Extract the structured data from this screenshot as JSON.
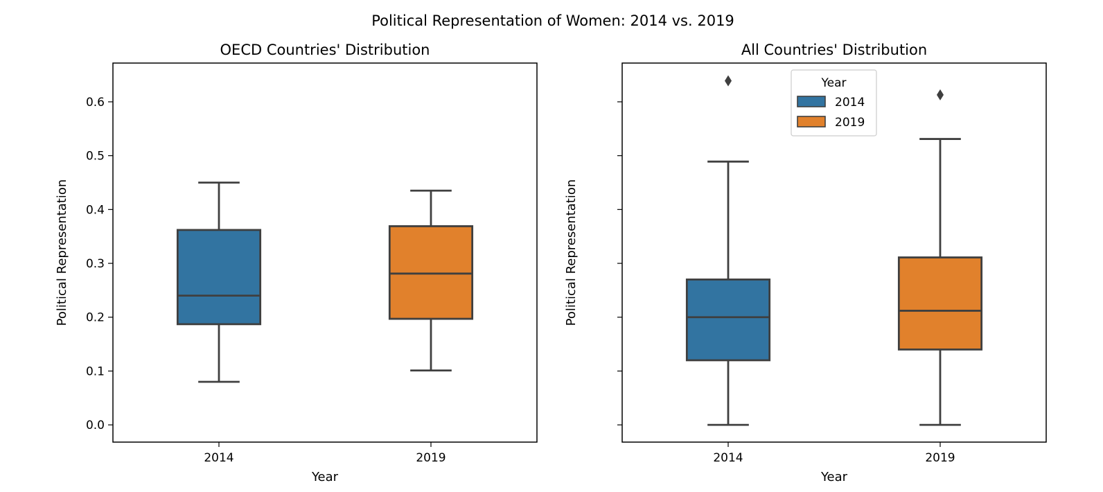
{
  "figure": {
    "title": "Political Representation of Women: 2014 vs. 2019"
  },
  "chart_data": [
    {
      "type": "box",
      "title": "OECD Countries' Distribution",
      "xlabel": "Year",
      "ylabel": "Political Representation",
      "categories": [
        "2014",
        "2019"
      ],
      "ylim": [
        -0.032,
        0.672
      ],
      "yticks": [
        0.0,
        0.1,
        0.2,
        0.3,
        0.4,
        0.5,
        0.6
      ],
      "ytick_labels": [
        "0.0",
        "0.1",
        "0.2",
        "0.3",
        "0.4",
        "0.5",
        "0.6"
      ],
      "boxes": [
        {
          "category": "2014",
          "whisker_low": 0.08,
          "q1": 0.187,
          "median": 0.24,
          "q3": 0.362,
          "whisker_high": 0.45,
          "outliers": [],
          "color": "#3274a1"
        },
        {
          "category": "2019",
          "whisker_low": 0.101,
          "q1": 0.197,
          "median": 0.281,
          "q3": 0.369,
          "whisker_high": 0.435,
          "outliers": [],
          "color": "#e1812c"
        }
      ]
    },
    {
      "type": "box",
      "title": "All Countries' Distribution",
      "xlabel": "Year",
      "ylabel": "Political Representation",
      "categories": [
        "2014",
        "2019"
      ],
      "ylim": [
        -0.032,
        0.672
      ],
      "yticks": [
        0.0,
        0.1,
        0.2,
        0.3,
        0.4,
        0.5,
        0.6
      ],
      "ytick_labels": [
        "",
        "",
        "",
        "",
        "",
        "",
        ""
      ],
      "boxes": [
        {
          "category": "2014",
          "whisker_low": 0.0,
          "q1": 0.12,
          "median": 0.2,
          "q3": 0.27,
          "whisker_high": 0.489,
          "outliers": [
            0.639
          ],
          "color": "#3274a1"
        },
        {
          "category": "2019",
          "whisker_low": 0.0,
          "q1": 0.14,
          "median": 0.212,
          "q3": 0.311,
          "whisker_high": 0.531,
          "outliers": [
            0.613
          ],
          "color": "#e1812c"
        }
      ],
      "legend": {
        "title": "Year",
        "location": "upper-center",
        "entries": [
          {
            "label": "2014",
            "color": "#3274a1"
          },
          {
            "label": "2019",
            "color": "#e1812c"
          }
        ]
      }
    }
  ]
}
